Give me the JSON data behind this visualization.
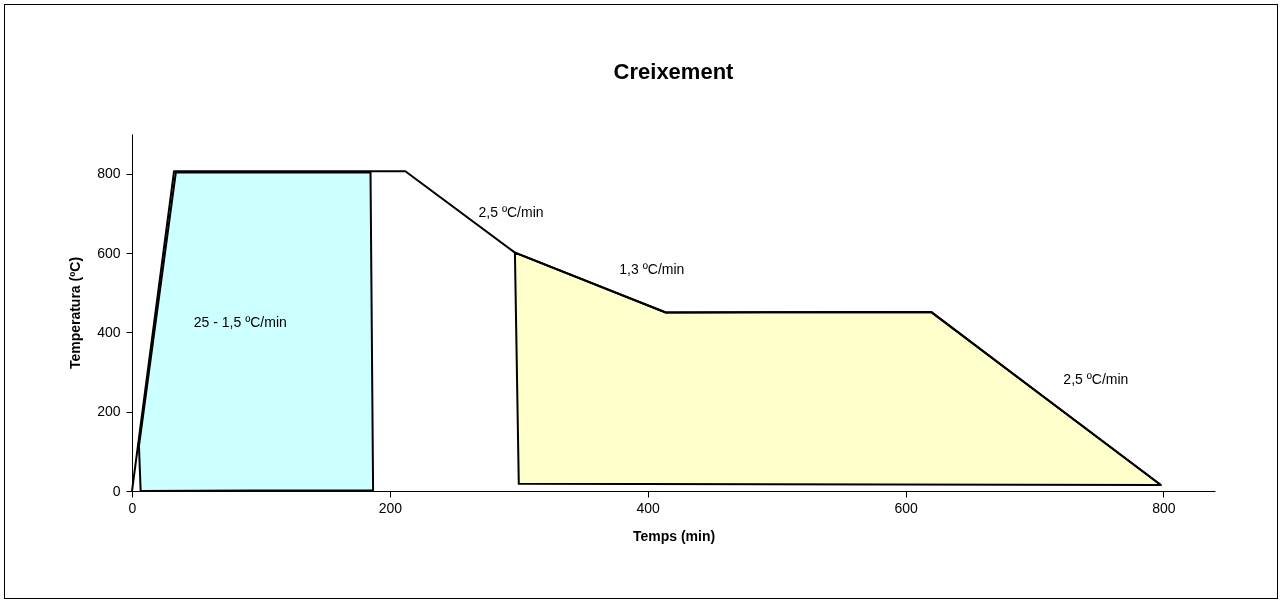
{
  "chart_data": {
    "type": "line",
    "title": "Creixement",
    "xlabel": "Temps (min)",
    "ylabel": "Temperatura (ºC)",
    "xlim": [
      0,
      840
    ],
    "ylim": [
      0,
      900
    ],
    "xticks": [
      0,
      200,
      400,
      600,
      800
    ],
    "yticks": [
      0,
      200,
      400,
      600,
      800
    ],
    "grid": false,
    "marker": "none",
    "line_style": "solid",
    "series": [
      {
        "type": "area",
        "color": "#ccffff",
        "x": [
          6.7,
          5.4,
          34,
          185,
          187
        ],
        "values": [
          0,
          113,
          803,
          803,
          2
        ]
      },
      {
        "type": "area",
        "color": "#ffffcc",
        "x": [
          297,
          414,
          620,
          798,
          300
        ],
        "values": [
          601,
          450,
          451,
          15,
          18
        ]
      },
      {
        "color": "#000000",
        "x": [
          0,
          32.6,
          212,
          297,
          414,
          620,
          798
        ],
        "values": [
          0,
          806,
          806,
          601,
          450,
          451,
          15
        ]
      }
    ],
    "annotations": [
      "25 - 1,5 ºC/min",
      "2,5 ºC/min",
      "1,3 ºC/min",
      "2,5 ºC/min"
    ]
  }
}
